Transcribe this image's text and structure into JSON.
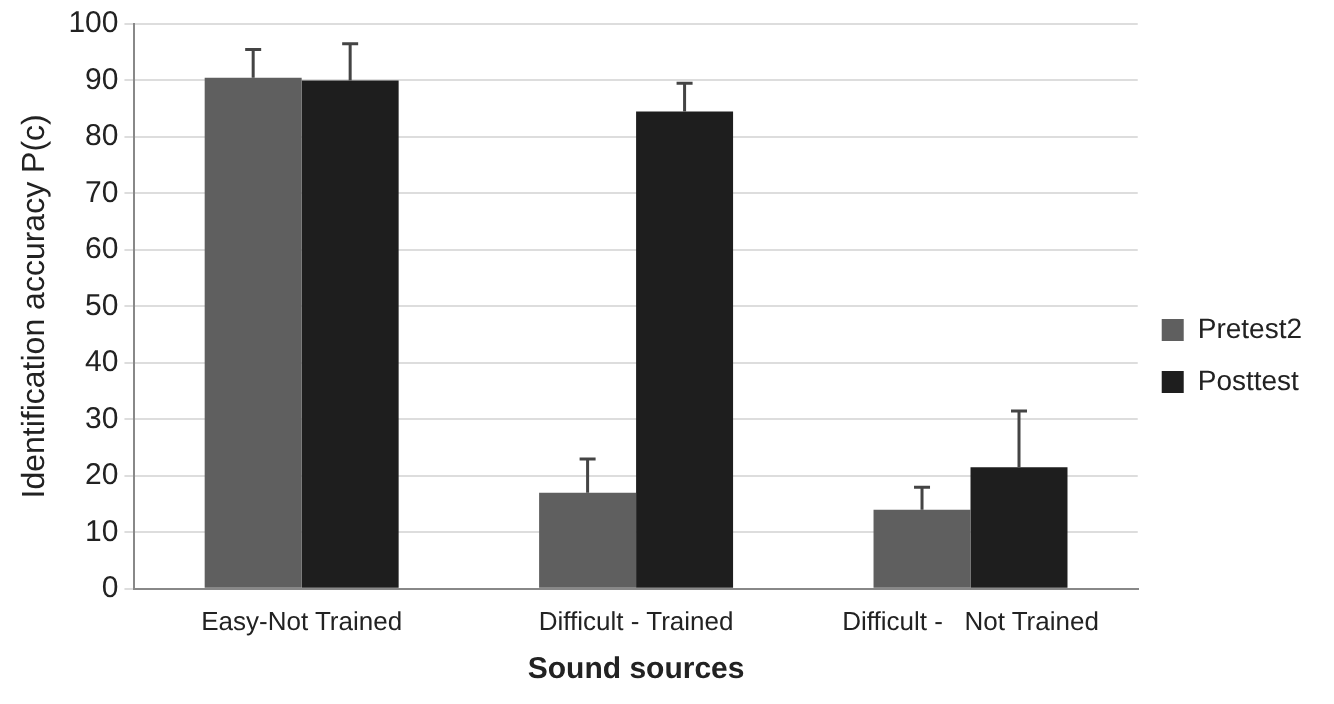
{
  "chart_data": {
    "type": "bar",
    "xlabel": "Sound sources",
    "ylabel": "Identification accuracy P(c)",
    "categories": [
      "Easy-Not Trained",
      "Difficult - Trained",
      "Difficult -   Not Trained"
    ],
    "series": [
      {
        "name": "Pretest2",
        "color": "#5f5f5f",
        "values": [
          90.5,
          17,
          14
        ],
        "errors": [
          [
            90.5,
            95.5
          ],
          [
            17,
            23
          ],
          [
            14,
            18
          ]
        ]
      },
      {
        "name": "Posttest",
        "color": "#1e1e1e",
        "values": [
          90,
          84.5,
          21.5
        ],
        "errors": [
          [
            90,
            96.5
          ],
          [
            84.5,
            89.5
          ],
          [
            21.5,
            31.5
          ]
        ]
      }
    ],
    "ylim": [
      0,
      100
    ],
    "yticks": [
      0,
      10,
      20,
      30,
      40,
      50,
      60,
      70,
      80,
      90,
      100
    ],
    "grid": "y",
    "legend": "right"
  }
}
